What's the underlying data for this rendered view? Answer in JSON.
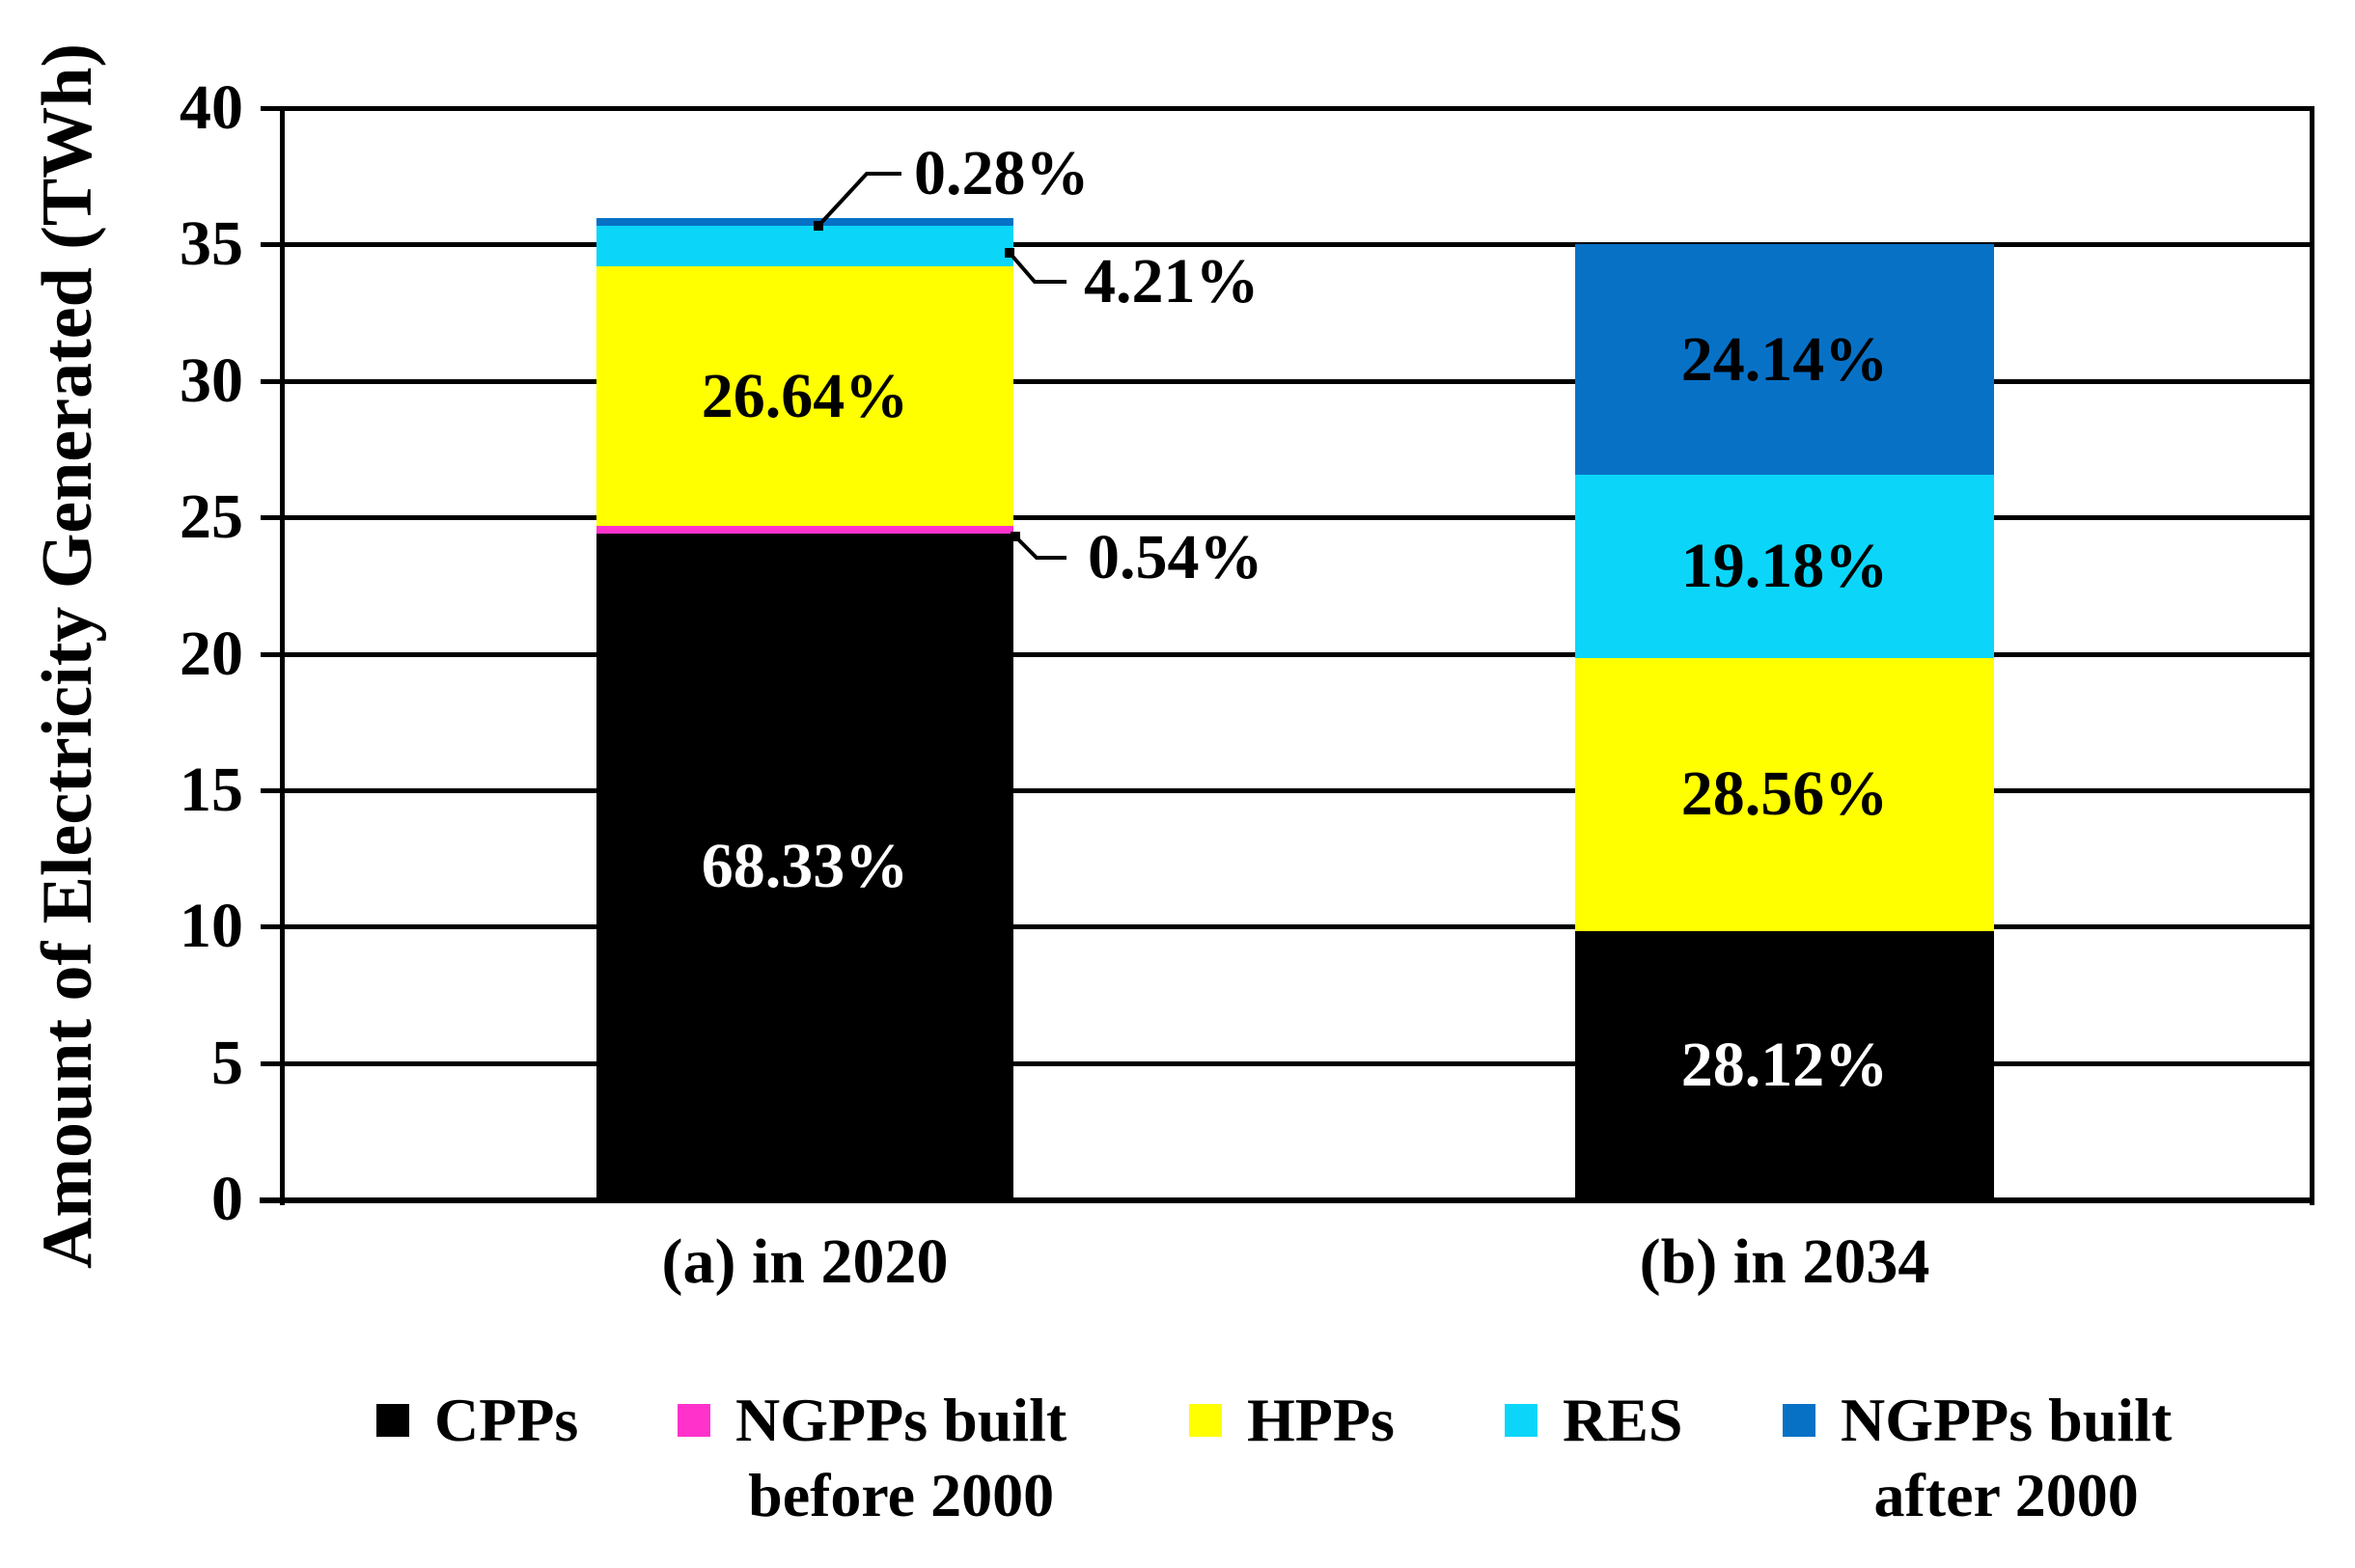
{
  "chart_data": {
    "type": "bar",
    "stacked": true,
    "title": "",
    "ylabel": "Amount of Electricity Generated (TWh)",
    "xlabel": "",
    "ylim": [
      0,
      40
    ],
    "ytick_step": 5,
    "ytick_labels": [
      "0",
      "5",
      "10",
      "15",
      "20",
      "25",
      "30",
      "35",
      "40"
    ],
    "grid": "horizontal",
    "categories": [
      "(a) in 2020",
      "(b) in 2034"
    ],
    "totals_TWh": [
      35.7,
      35.0
    ],
    "series": [
      {
        "name": "CPPs",
        "color": "#000000",
        "percent": [
          68.33,
          28.12
        ],
        "values_TWh": [
          24.39,
          9.84
        ]
      },
      {
        "name": "NGPPs built before 2000",
        "color": "#FF33CC",
        "percent": [
          0.54,
          0
        ],
        "values_TWh": [
          0.19,
          0
        ]
      },
      {
        "name": "HPPs",
        "color": "#FFFF00",
        "percent": [
          26.64,
          28.56
        ],
        "values_TWh": [
          9.51,
          10.0
        ]
      },
      {
        "name": "RES",
        "color": "#0BD6FA",
        "percent": [
          4.21,
          19.18
        ],
        "values_TWh": [
          1.5,
          6.71
        ]
      },
      {
        "name": "NGPPs built after 2000",
        "color": "#0771C6",
        "percent": [
          0.28,
          24.14
        ],
        "values_TWh": [
          0.1,
          8.45
        ]
      }
    ],
    "inside_labels": [
      {
        "bar": 0,
        "series": "CPPs",
        "text": "68.33%",
        "color": "#FFFFFF"
      },
      {
        "bar": 0,
        "series": "HPPs",
        "text": "26.64%",
        "color": "#000000"
      },
      {
        "bar": 1,
        "series": "CPPs",
        "text": "28.12%",
        "color": "#FFFFFF"
      },
      {
        "bar": 1,
        "series": "HPPs",
        "text": "28.56%",
        "color": "#000000"
      },
      {
        "bar": 1,
        "series": "RES",
        "text": "19.18%",
        "color": "#000000"
      },
      {
        "bar": 1,
        "series": "NGPPs built after 2000",
        "text": "24.14%",
        "color": "#000000"
      }
    ],
    "callout_labels": [
      {
        "bar": 0,
        "series": "NGPPs built after 2000",
        "text": "0.28%"
      },
      {
        "bar": 0,
        "series": "RES",
        "text": "4.21%"
      },
      {
        "bar": 0,
        "series": "NGPPs built before 2000",
        "text": "0.54%"
      }
    ],
    "legend": {
      "position": "bottom",
      "items": [
        {
          "label": "CPPs",
          "label_lines": [
            "CPPs"
          ],
          "color": "#000000"
        },
        {
          "label": "NGPPs built before 2000",
          "label_lines": [
            "NGPPs built",
            "before 2000"
          ],
          "color": "#FF33CC"
        },
        {
          "label": "HPPs",
          "label_lines": [
            "HPPs"
          ],
          "color": "#FFFF00"
        },
        {
          "label": "RES",
          "label_lines": [
            "RES"
          ],
          "color": "#0BD6FA"
        },
        {
          "label": "NGPPs built after 2000",
          "label_lines": [
            "NGPPs built",
            "after 2000"
          ],
          "color": "#0771C6"
        }
      ]
    }
  }
}
